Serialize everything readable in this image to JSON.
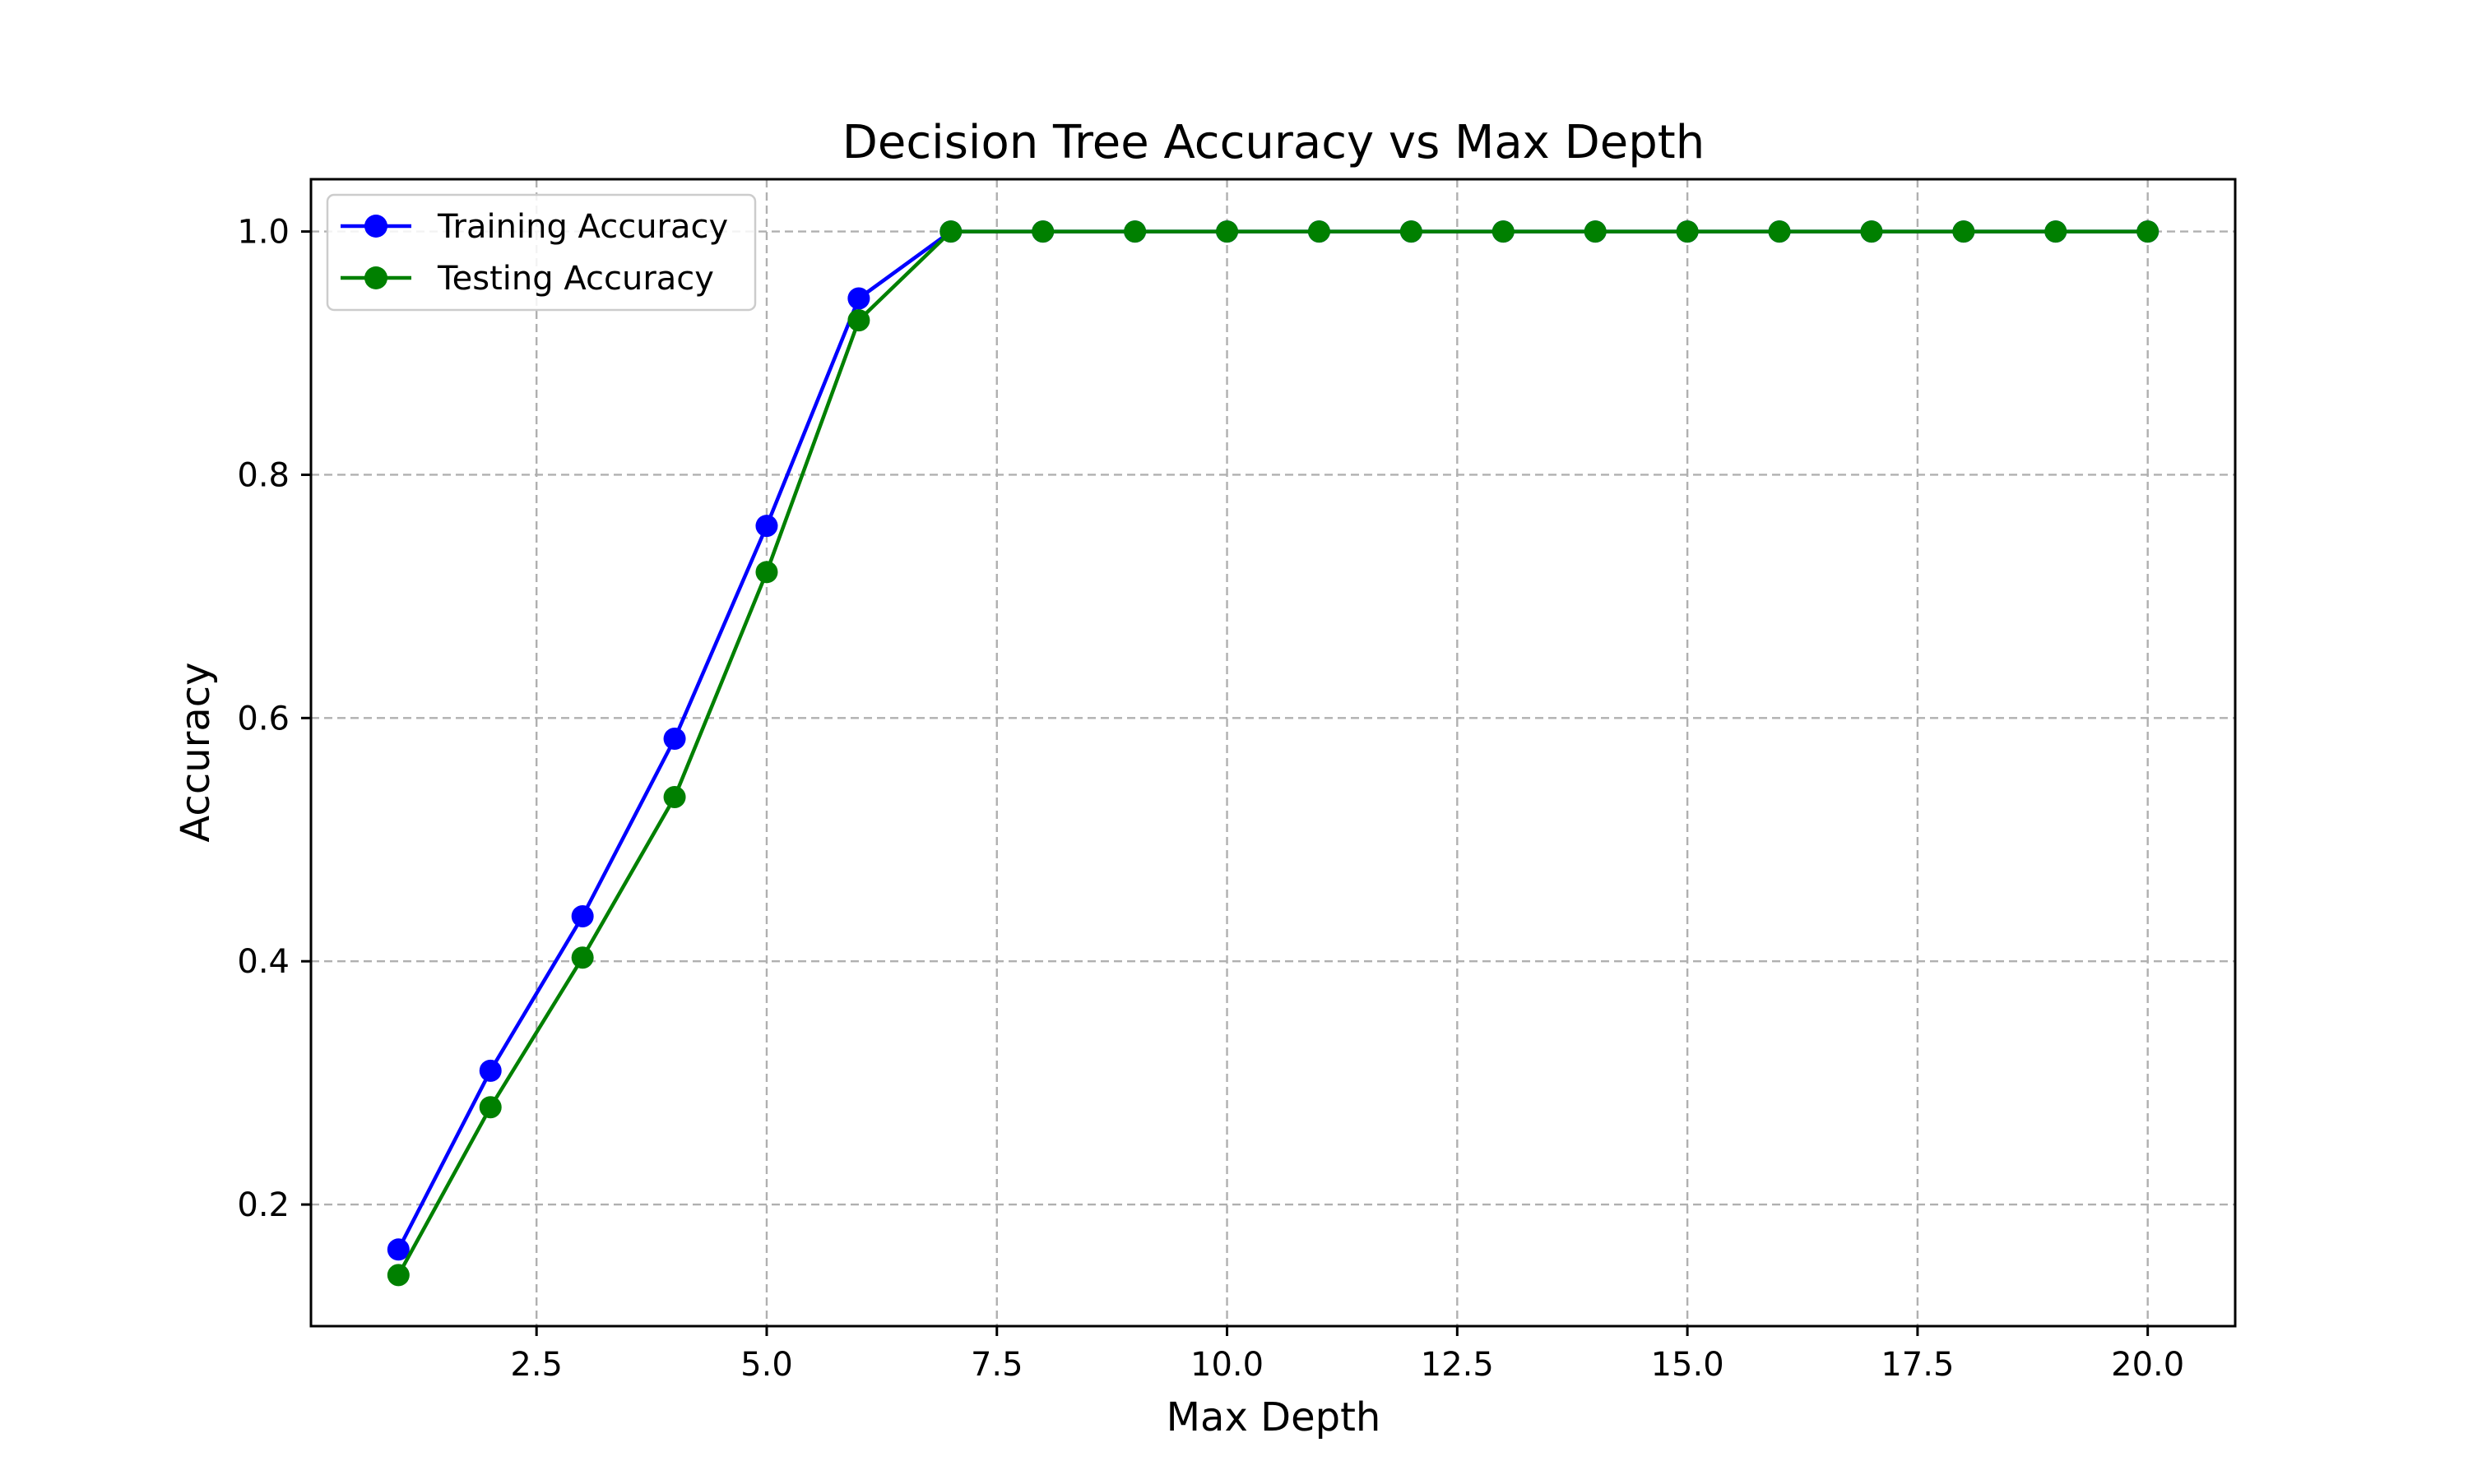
{
  "chart_data": {
    "type": "line",
    "title": "Decision Tree Accuracy vs Max Depth",
    "xlabel": "Max Depth",
    "ylabel": "Accuracy",
    "x": [
      1,
      2,
      3,
      4,
      5,
      6,
      7,
      8,
      9,
      10,
      11,
      12,
      13,
      14,
      15,
      16,
      17,
      18,
      19,
      20
    ],
    "xlim": [
      0.05,
      20.95
    ],
    "ylim": [
      0.1,
      1.043
    ],
    "xticks": [
      2.5,
      5.0,
      7.5,
      10.0,
      12.5,
      15.0,
      17.5,
      20.0
    ],
    "xtick_labels": [
      "2.5",
      "5.0",
      "7.5",
      "10.0",
      "12.5",
      "15.0",
      "17.5",
      "20.0"
    ],
    "yticks": [
      0.2,
      0.4,
      0.6,
      0.8,
      1.0
    ],
    "ytick_labels": [
      "0.2",
      "0.4",
      "0.6",
      "0.8",
      "1.0"
    ],
    "grid": true,
    "legend_position": "top-left",
    "series": [
      {
        "name": "Training Accuracy",
        "color": "#0000ff",
        "marker": "circle",
        "values": [
          0.163,
          0.31,
          0.437,
          0.583,
          0.758,
          0.945,
          1.0,
          1.0,
          1.0,
          1.0,
          1.0,
          1.0,
          1.0,
          1.0,
          1.0,
          1.0,
          1.0,
          1.0,
          1.0,
          1.0
        ]
      },
      {
        "name": "Testing Accuracy",
        "color": "#008000",
        "marker": "circle",
        "values": [
          0.142,
          0.28,
          0.403,
          0.535,
          0.72,
          0.927,
          1.0,
          1.0,
          1.0,
          1.0,
          1.0,
          1.0,
          1.0,
          1.0,
          1.0,
          1.0,
          1.0,
          1.0,
          1.0,
          1.0
        ]
      }
    ]
  }
}
